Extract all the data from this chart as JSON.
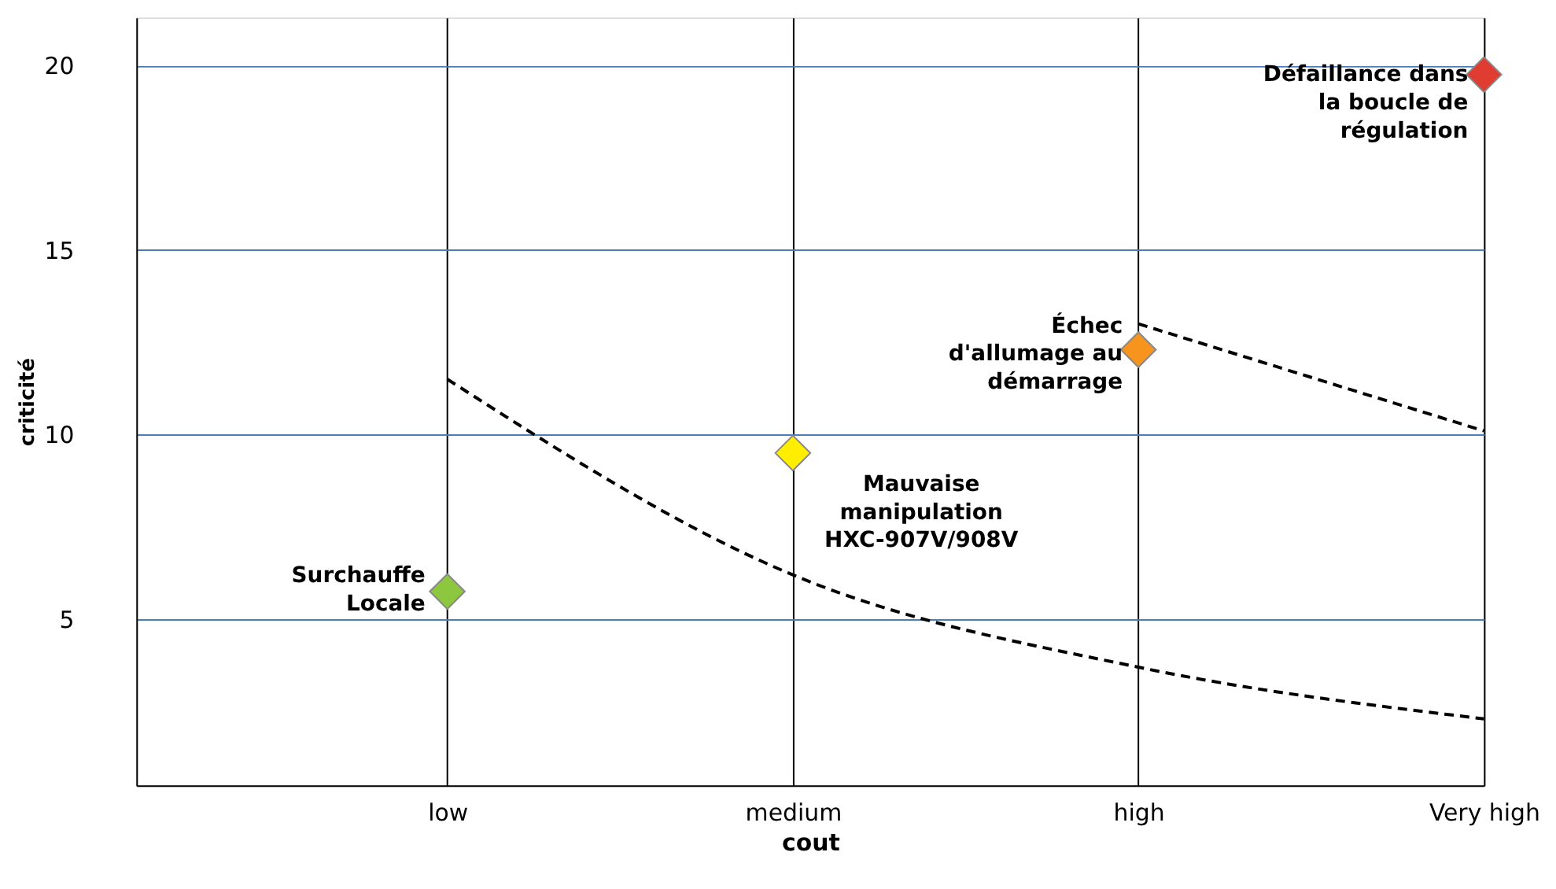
{
  "chart_data": {
    "type": "scatter",
    "xlabel": "cout",
    "ylabel": "criticité",
    "categories": [
      "low",
      "medium",
      "high",
      "Very high"
    ],
    "ylim": [
      0.5,
      21.3
    ],
    "yticks": [
      5,
      10,
      15,
      20
    ],
    "grid": true,
    "series": [
      {
        "type": "line",
        "line_style": "dashed",
        "color": "#000000",
        "values": [
          11.5,
          6.2,
          3.7,
          2.3
        ]
      },
      {
        "type": "line",
        "line_style": "dashed",
        "color": "#000000",
        "values": [
          null,
          null,
          13.0,
          10.1
        ]
      },
      {
        "marker": "diamond",
        "colors": [
          "#8dc63f",
          "#ffee00",
          "#f7941d",
          "#e03c31"
        ],
        "values": [
          5.75,
          9.5,
          12.3,
          19.75
        ]
      }
    ],
    "annotations": [
      {
        "text": "Surchauffe\nLocale",
        "x": "low",
        "y": 5.75
      },
      {
        "text": "Mauvaise\nmanipulation\nHXC-907V/908V",
        "x": "medium",
        "y": 9.5
      },
      {
        "text": "Échec\nd'allumage au\ndémarrage",
        "x": "high",
        "y": 12.3
      },
      {
        "text": "Défaillance dans\nla boucle de\nrégulation",
        "x": "Very high",
        "y": 19.75
      }
    ]
  }
}
